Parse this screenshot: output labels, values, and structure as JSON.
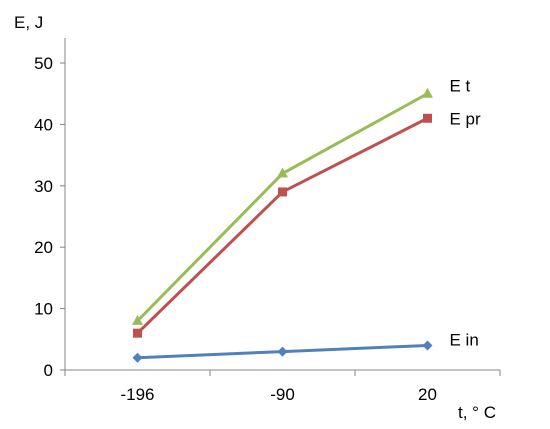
{
  "chart_data": {
    "type": "line",
    "title": "",
    "xlabel": "t, ° C",
    "ylabel": "E, J",
    "categories": [
      "-196",
      "-90",
      "20"
    ],
    "ylim": [
      0,
      50
    ],
    "yticks": [
      "0",
      "10",
      "20",
      "30",
      "40",
      "50"
    ],
    "grid": false,
    "series": [
      {
        "name": "E t",
        "values": [
          8,
          32,
          45
        ],
        "color": "#9BBB59",
        "marker": "triangle"
      },
      {
        "name": "E pr",
        "values": [
          6,
          29,
          41
        ],
        "color": "#C0504D",
        "marker": "square"
      },
      {
        "name": "E in",
        "values": [
          2,
          3,
          4
        ],
        "color": "#4F81BD",
        "marker": "diamond"
      }
    ]
  }
}
